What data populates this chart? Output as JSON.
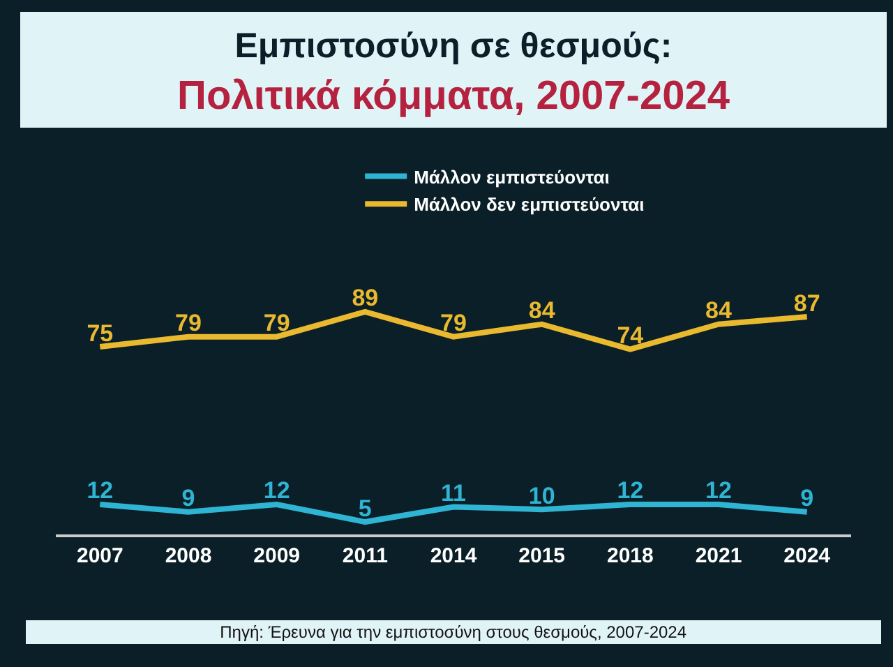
{
  "chart_data": {
    "type": "line",
    "title": "Εμπιστοσύνη σε θεσμούς:",
    "subtitle": "Πολιτικά κόμματα, 2007-2024",
    "categories": [
      "2007",
      "2008",
      "2009",
      "2011",
      "2014",
      "2015",
      "2018",
      "2021",
      "2024"
    ],
    "series": [
      {
        "name": "Μάλλον εμπιστεύονται",
        "color": "#2fb4d3",
        "values": [
          12,
          9,
          12,
          5,
          11,
          10,
          12,
          12,
          9
        ]
      },
      {
        "name": "Μάλλον δεν εμπιστεύονται",
        "color": "#e9b92f",
        "values": [
          75,
          79,
          79,
          89,
          79,
          84,
          74,
          84,
          87
        ]
      }
    ],
    "data_labels": true,
    "legend": "top",
    "grid": false,
    "marker": "none",
    "line_style": "solid",
    "tick_labels": "x",
    "annotations": [
      "Πηγή: Έρευνα για την εμπιστοσύνη στους θεσμούς, 2007-2024"
    ]
  }
}
